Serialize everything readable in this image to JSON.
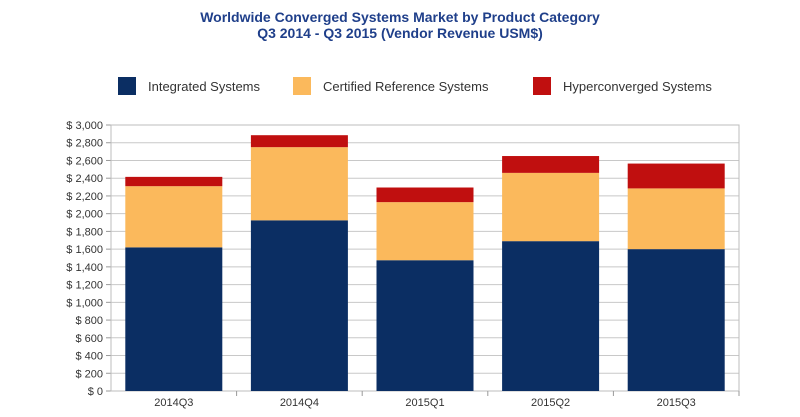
{
  "chart_data": {
    "type": "stacked-bar",
    "title": "Worldwide Converged Systems Market by Product Category",
    "subtitle": "Q3 2014 - Q3 2015 (Vendor Revenue USM$)",
    "categories": [
      "2014Q3",
      "2014Q4",
      "2015Q1",
      "2015Q2",
      "2015Q3"
    ],
    "series": [
      {
        "name": "Integrated Systems",
        "color": "#0b2e63",
        "values": [
          1620,
          1925,
          1475,
          1690,
          1600
        ]
      },
      {
        "name": "Certified Reference Systems",
        "color": "#fbb95c",
        "values": [
          690,
          825,
          655,
          770,
          685
        ]
      },
      {
        "name": "Hyperconverged Systems",
        "color": "#c00f0f",
        "values": [
          105,
          135,
          165,
          190,
          280
        ]
      }
    ],
    "ylim": [
      0,
      3000
    ],
    "ytick_step": 200,
    "ytick_labels": [
      "$ 0",
      "$ 200",
      "$ 400",
      "$ 600",
      "$ 800",
      "$ 1,000",
      "$ 1,200",
      "$ 1,400",
      "$ 1,600",
      "$ 1,800",
      "$ 2,000",
      "$ 2,200",
      "$ 2,400",
      "$ 2,600",
      "$ 2,800",
      "$ 3,000"
    ],
    "legend_position": "top",
    "grid": true
  }
}
